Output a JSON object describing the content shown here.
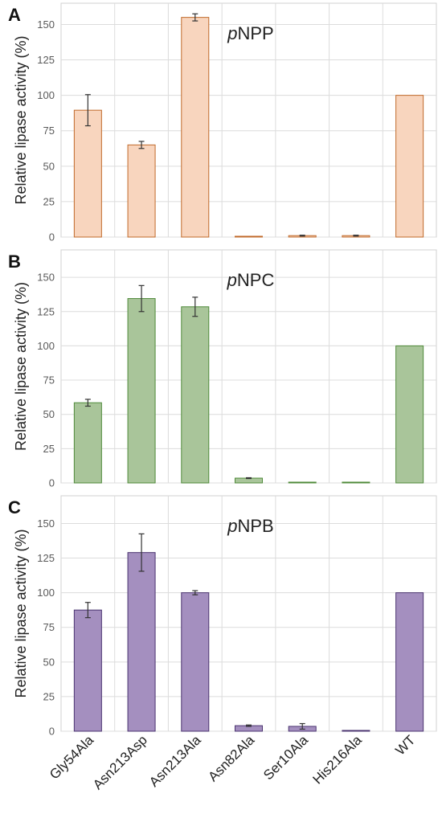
{
  "figure": {
    "ylabel": "Relative lipase activity (%)",
    "categories": [
      "Gly54Ala",
      "Asn213Asp",
      "Asn213Ala",
      "Asn82Ala",
      "Ser10Ala",
      "His216Ala",
      "WT"
    ]
  },
  "chart_data": [
    {
      "type": "bar",
      "panel": "A",
      "title_italic": "p",
      "title_rest": "NPP",
      "ylabel": "Relative lipase activity (%)",
      "ylim": [
        0,
        165
      ],
      "yticks": [
        0,
        25,
        50,
        75,
        100,
        125,
        150
      ],
      "grid": true,
      "fill": "#f8d5be",
      "stroke": "#c0692a",
      "categories": [
        "Gly54Ala",
        "Asn213Asp",
        "Asn213Ala",
        "Asn82Ala",
        "Ser10Ala",
        "His216Ala",
        "WT"
      ],
      "values": [
        89.5,
        65,
        155,
        0.5,
        1,
        1,
        100
      ],
      "errors": [
        11,
        2.5,
        2.5,
        0,
        0.3,
        0.3,
        0
      ]
    },
    {
      "type": "bar",
      "panel": "B",
      "title_italic": "p",
      "title_rest": "NPC",
      "ylabel": "Relative lipase activity (%)",
      "ylim": [
        0,
        170
      ],
      "yticks": [
        0,
        25,
        50,
        75,
        100,
        125,
        150
      ],
      "grid": true,
      "fill": "#a9c59a",
      "stroke": "#4f8a3a",
      "categories": [
        "Gly54Ala",
        "Asn213Asp",
        "Asn213Ala",
        "Asn82Ala",
        "Ser10Ala",
        "His216Ala",
        "WT"
      ],
      "values": [
        58.5,
        134.5,
        128.5,
        3.5,
        0.3,
        0.3,
        100
      ],
      "errors": [
        2.5,
        9.5,
        7,
        0.3,
        0,
        0,
        0
      ]
    },
    {
      "type": "bar",
      "panel": "C",
      "title_italic": "p",
      "title_rest": "NPB",
      "ylabel": "Relative lipase activity (%)",
      "ylim": [
        0,
        170
      ],
      "yticks": [
        0,
        25,
        50,
        75,
        100,
        125,
        150
      ],
      "grid": true,
      "fill": "#a48fbf",
      "stroke": "#4b3470",
      "categories": [
        "Gly54Ala",
        "Asn213Asp",
        "Asn213Ala",
        "Asn82Ala",
        "Ser10Ala",
        "His216Ala",
        "WT"
      ],
      "values": [
        87.5,
        129,
        100,
        4,
        3.5,
        0.5,
        100
      ],
      "errors": [
        5.5,
        13.5,
        1.5,
        0.5,
        2,
        0,
        0
      ]
    }
  ]
}
